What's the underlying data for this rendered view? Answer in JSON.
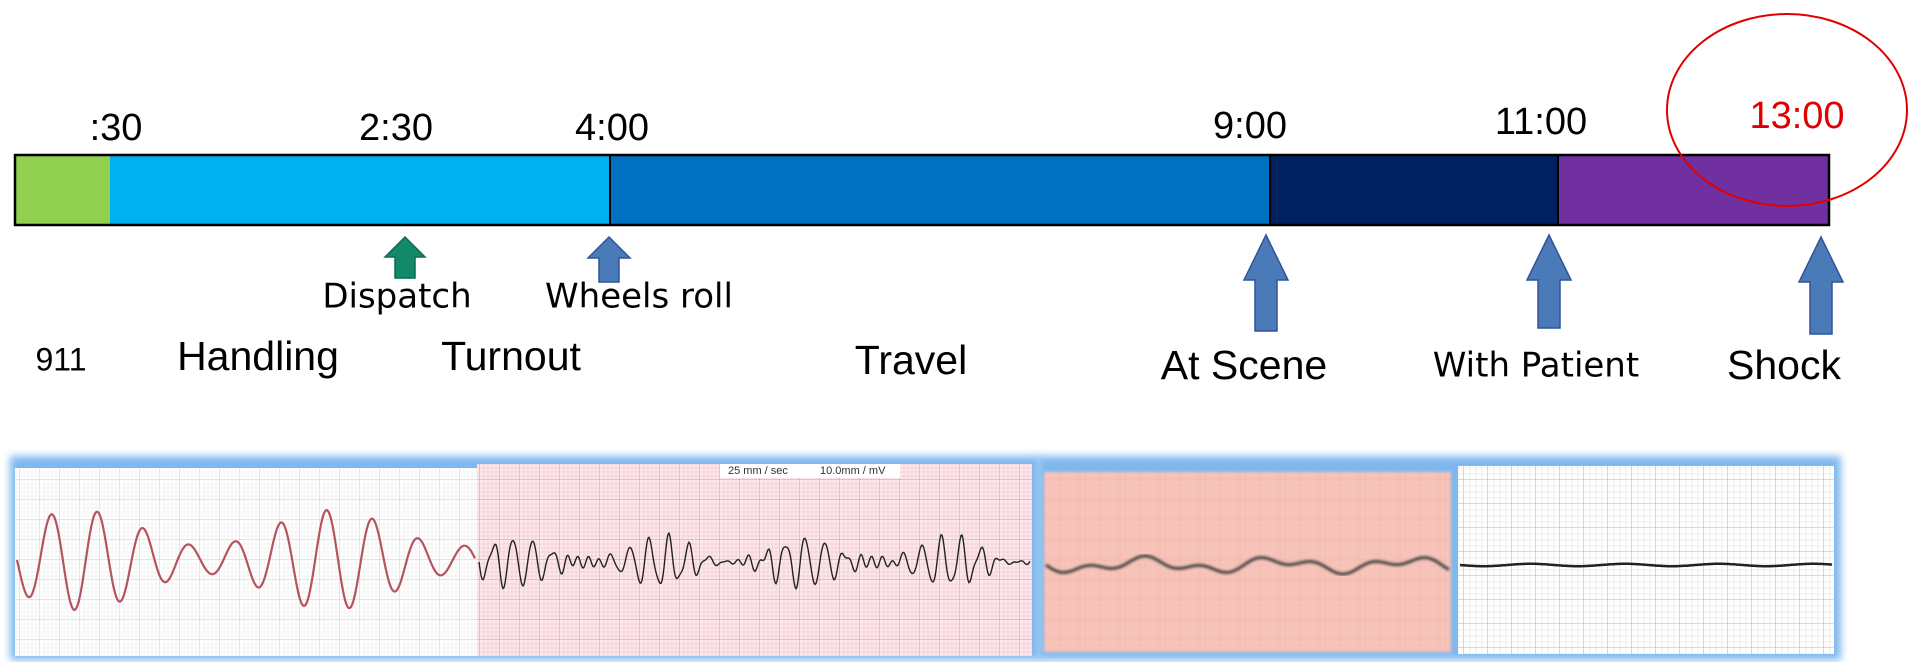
{
  "times": [
    ":30",
    "2:30",
    "4:00",
    "9:00",
    "11:00",
    "13:00"
  ],
  "milestones": [
    "Dispatch",
    "Wheels roll"
  ],
  "phases": [
    "911",
    "Handling",
    "Turnout",
    "Travel",
    "At Scene",
    "With Patient",
    "Shock"
  ],
  "ecg_strip": {
    "speed": "25 mm / sec",
    "gain": "10.0mm / mV"
  }
}
